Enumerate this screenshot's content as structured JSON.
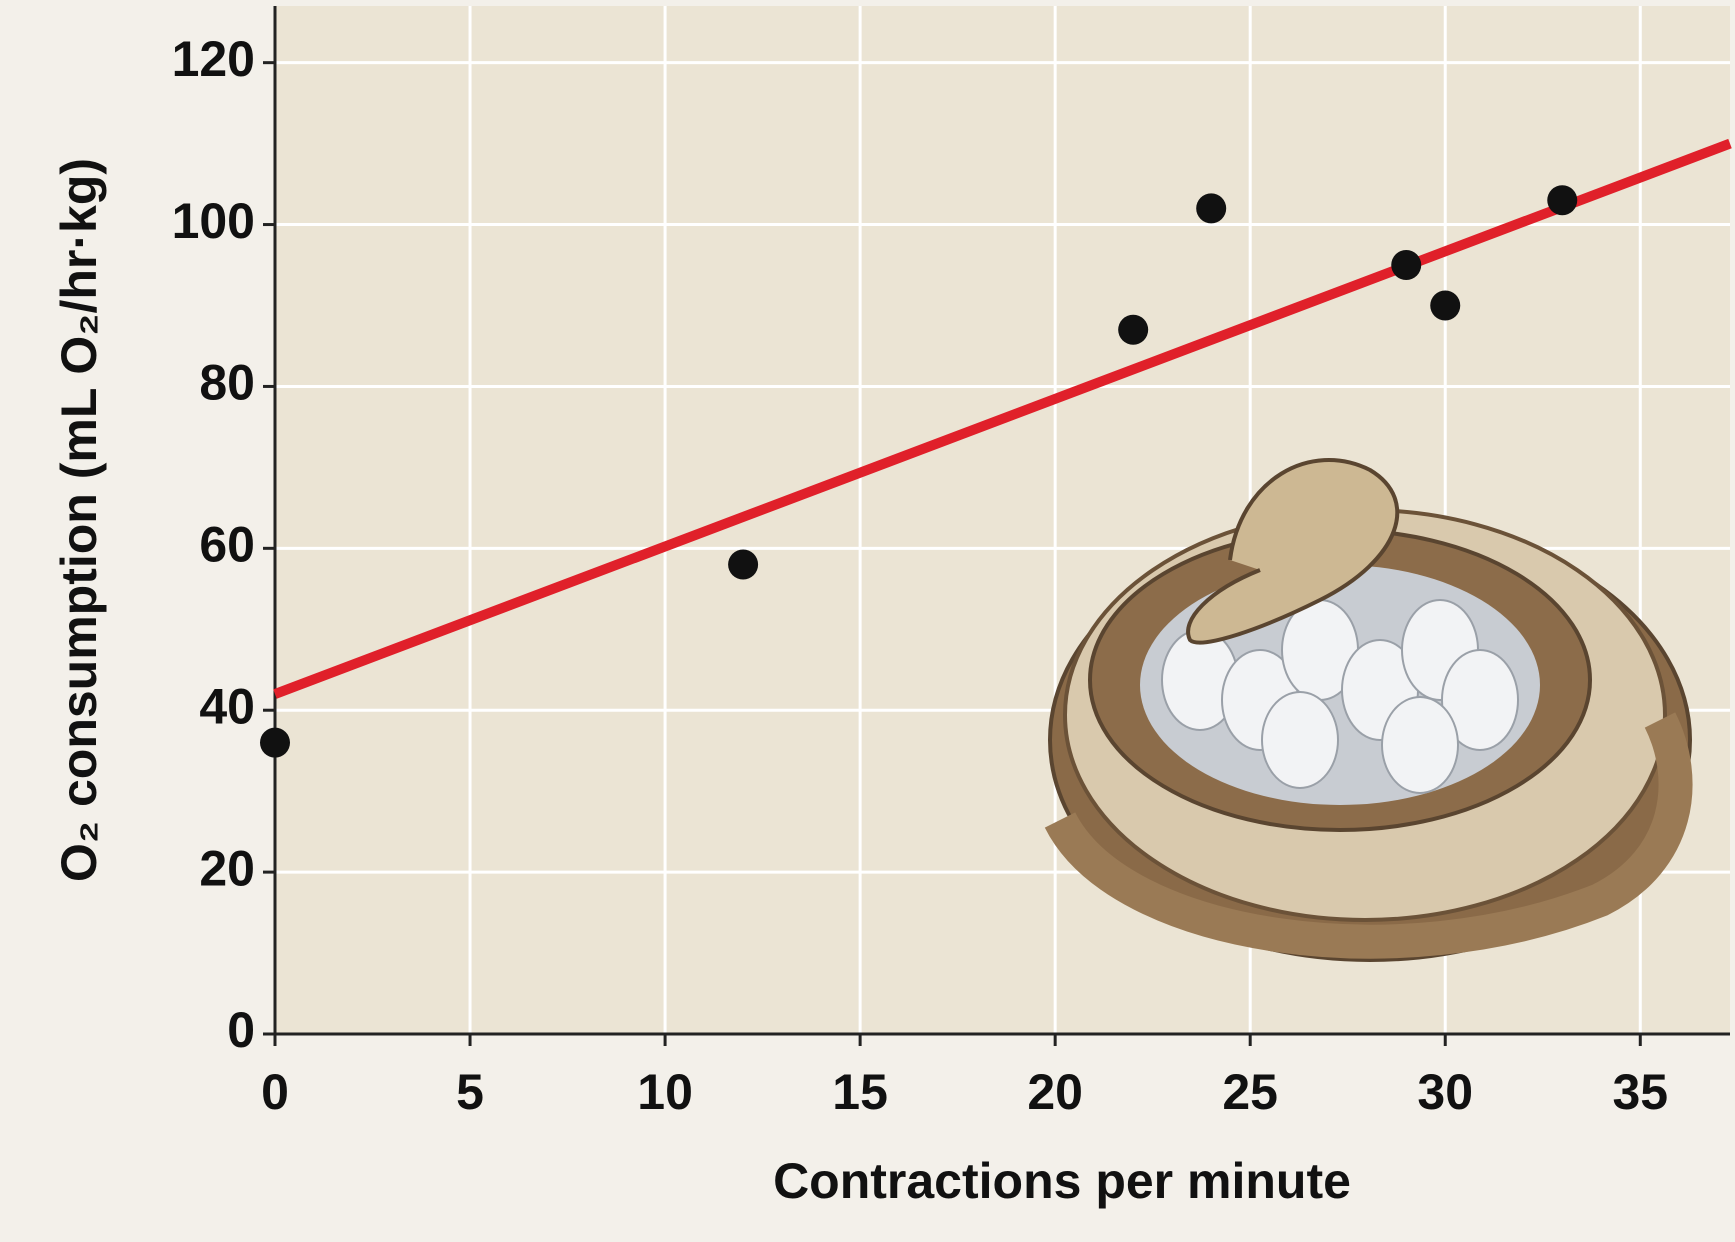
{
  "chart_data": {
    "type": "scatter",
    "x_label": "Contractions per minute",
    "y_label": "O₂ consumption (mL O₂/hr·kg)",
    "x": [
      0,
      12,
      22,
      24,
      29,
      30,
      33
    ],
    "values": [
      36,
      58,
      87,
      102,
      95,
      90,
      103
    ],
    "color": "#111111",
    "fit": {
      "color": "#e0202a",
      "x": [
        0,
        37.3
      ],
      "values": [
        42,
        110
      ]
    },
    "xlim": [
      0,
      37.3
    ],
    "ylim": [
      0,
      127
    ],
    "xticks": [
      0,
      5,
      10,
      15,
      20,
      25,
      30,
      35
    ],
    "yticks": [
      0,
      20,
      40,
      60,
      80,
      100,
      120
    ],
    "grid": true
  }
}
